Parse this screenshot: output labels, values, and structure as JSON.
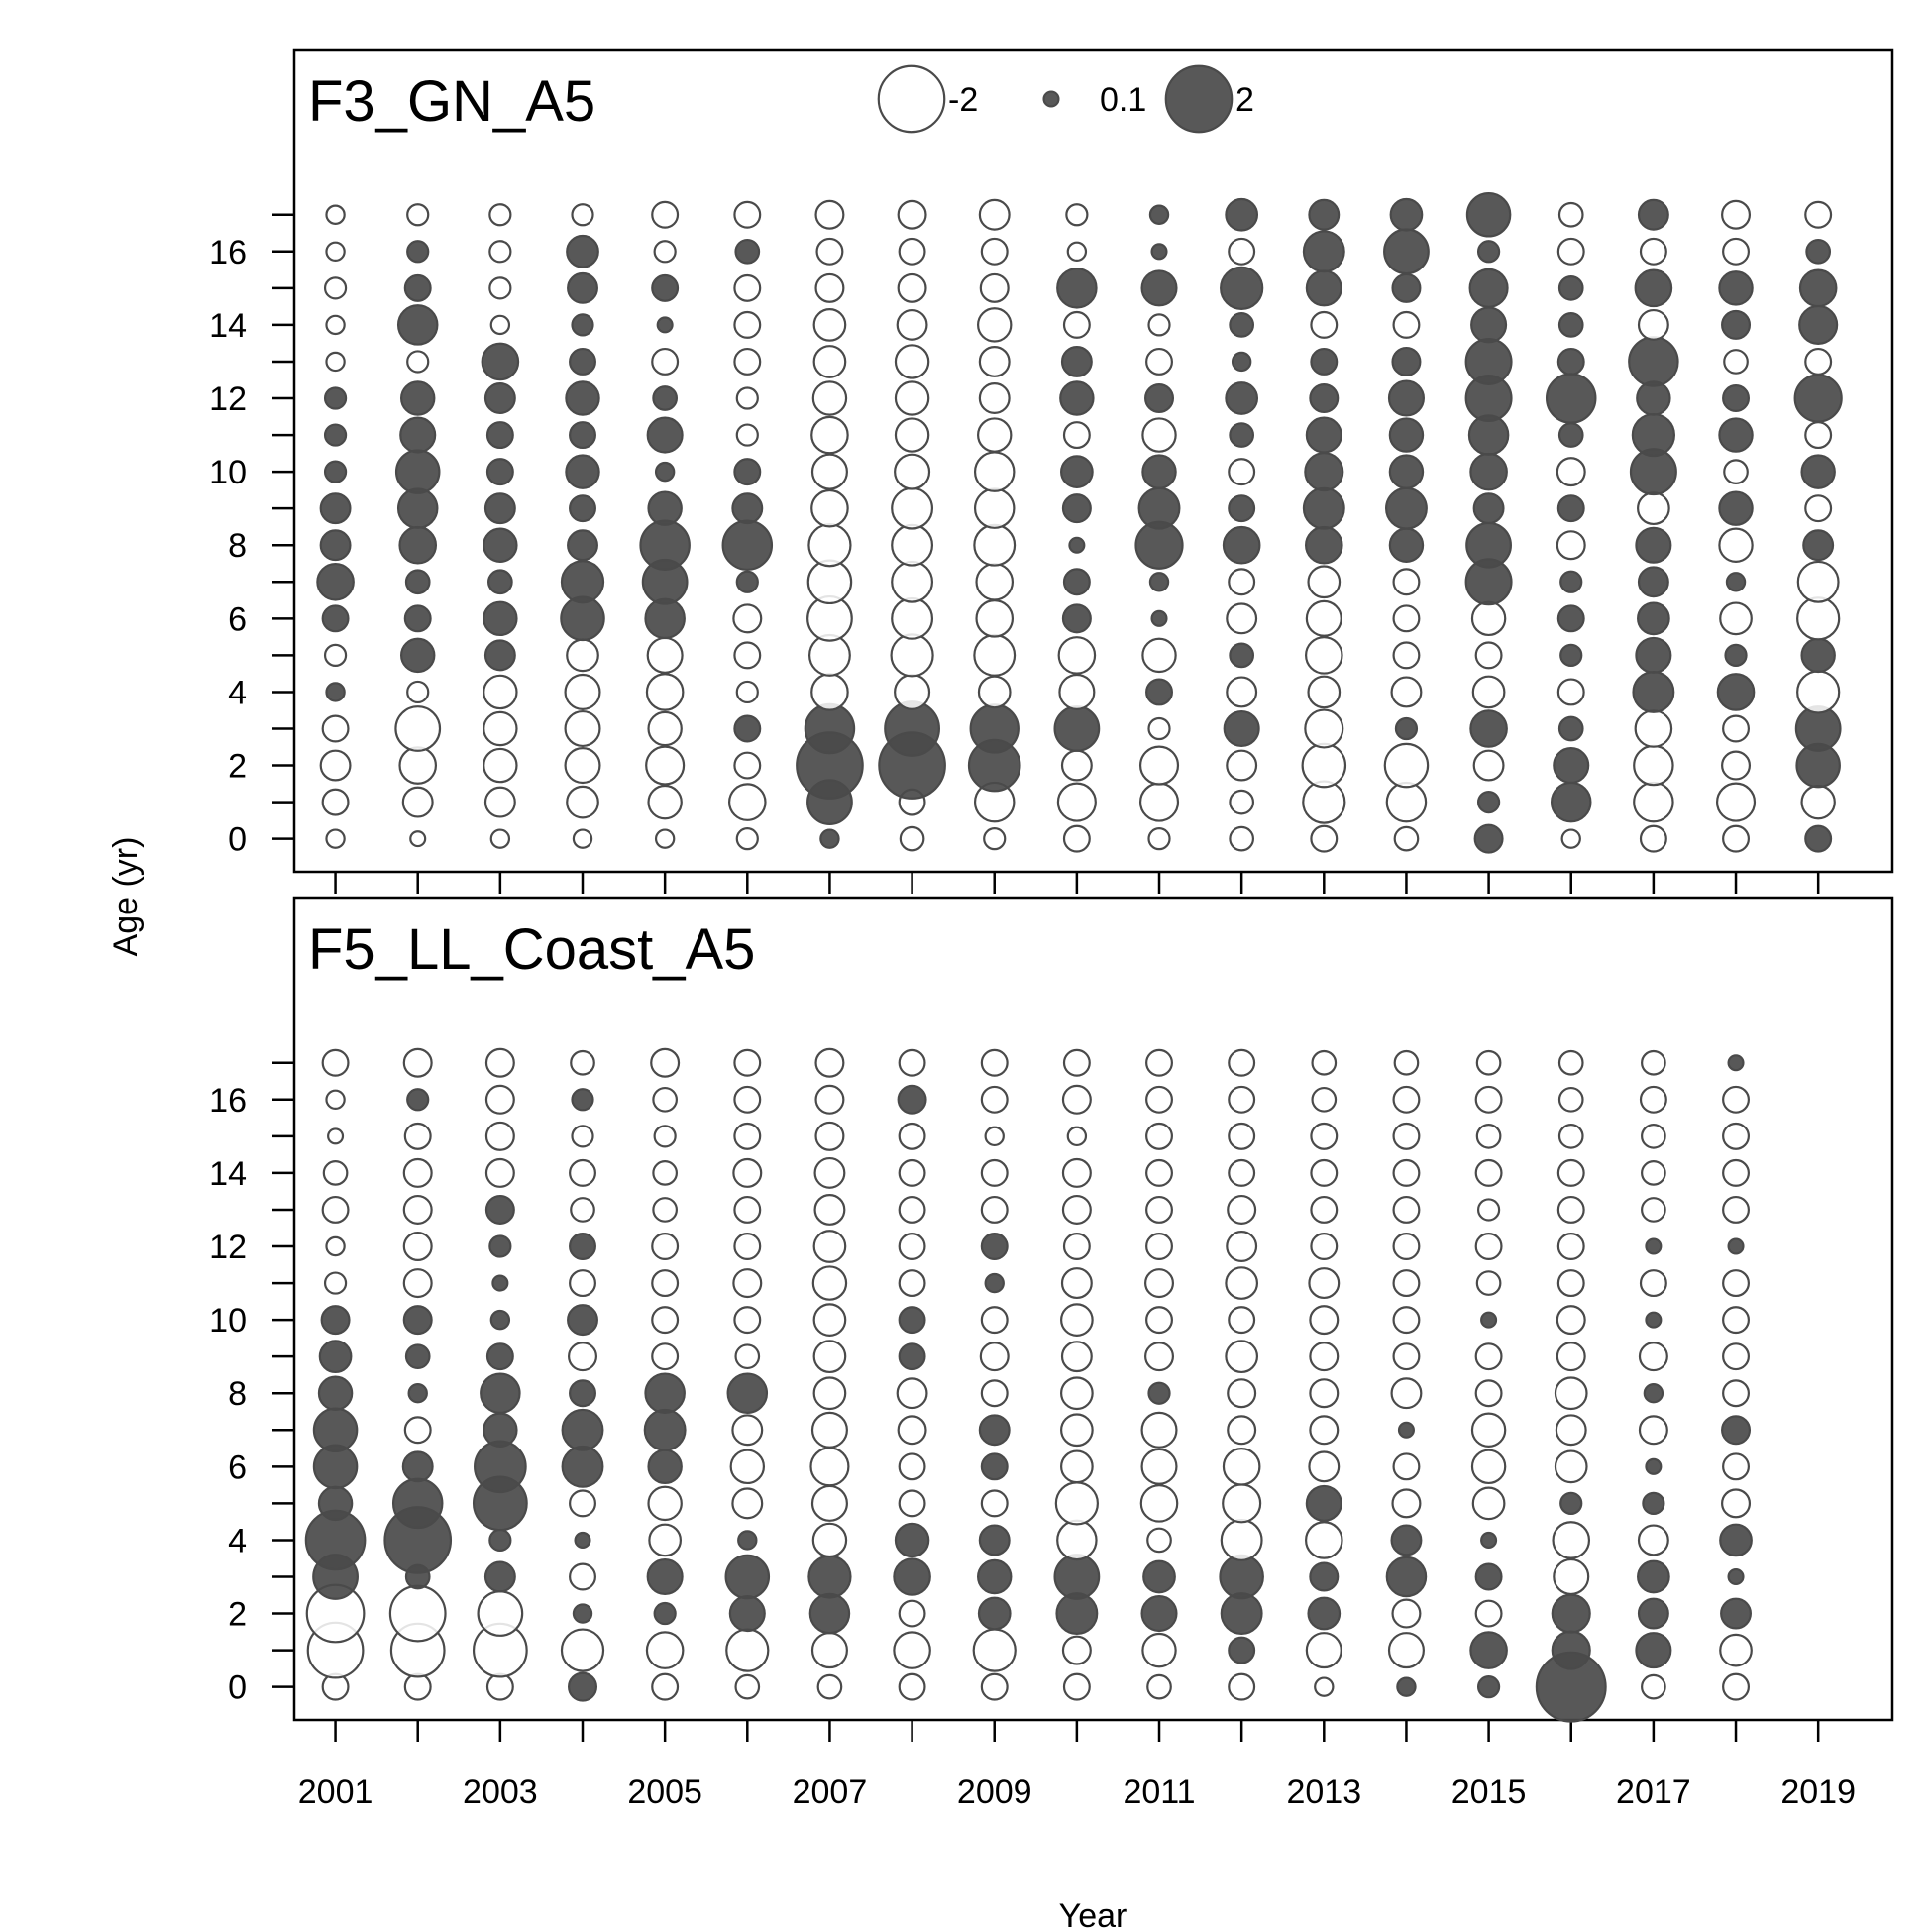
{
  "chart_data": {
    "type": "scatter",
    "subtype": "bubble residual plot",
    "xlabel": "Year",
    "ylabel": "Age (yr)",
    "x_ticks": [
      2001,
      2003,
      2005,
      2007,
      2009,
      2011,
      2013,
      2015,
      2017,
      2019
    ],
    "y_ticks": [
      0,
      2,
      4,
      6,
      8,
      10,
      12,
      14,
      16
    ],
    "xlim": [
      2000.5,
      2019.9
    ],
    "ylim": [
      -0.9,
      21.5
    ],
    "legend": {
      "placement": "top-center",
      "entries": [
        {
          "label": "-2",
          "value": -2
        },
        {
          "label": "0.1",
          "value": 0.1
        },
        {
          "label": "2",
          "value": 2
        }
      ]
    },
    "style": {
      "positive_fill": "#4a4a4a",
      "negative_fill": "#ffffff",
      "stroke": "#4a4a4a"
    },
    "years": [
      2001,
      2002,
      2003,
      2004,
      2005,
      2006,
      2007,
      2008,
      2009,
      2010,
      2011,
      2012,
      2013,
      2014,
      2015,
      2016,
      2017,
      2018,
      2019
    ],
    "ages": [
      0,
      1,
      2,
      3,
      4,
      5,
      6,
      7,
      8,
      9,
      10,
      11,
      12,
      13,
      14,
      15,
      16,
      17
    ],
    "panels": [
      {
        "title": "F3_GN_A5",
        "residuals": [
          [
            -0.15,
            -0.3,
            -0.4,
            -0.3,
            0.15,
            -0.2,
            0.3,
            0.6,
            0.4,
            0.4,
            0.2,
            0.2,
            0.2,
            -0.15,
            -0.15,
            -0.2,
            -0.15,
            -0.15
          ],
          [
            -0.1,
            -0.4,
            -0.6,
            -0.9,
            -0.2,
            0.5,
            0.3,
            0.25,
            0.6,
            0.7,
            0.85,
            0.55,
            0.5,
            -0.2,
            0.7,
            0.3,
            0.2,
            -0.2
          ],
          [
            -0.15,
            -0.4,
            -0.5,
            -0.5,
            -0.5,
            0.4,
            0.5,
            0.25,
            0.5,
            0.4,
            0.3,
            0.3,
            0.4,
            0.6,
            -0.15,
            -0.2,
            -0.2,
            -0.2
          ],
          [
            -0.15,
            -0.45,
            -0.55,
            -0.55,
            -0.55,
            -0.45,
            0.85,
            0.8,
            0.4,
            0.3,
            0.5,
            0.3,
            0.5,
            0.3,
            0.2,
            0.4,
            0.45,
            -0.2
          ],
          [
            -0.15,
            -0.5,
            -0.65,
            -0.5,
            -0.6,
            -0.55,
            0.7,
            0.9,
            1.1,
            0.5,
            0.15,
            0.55,
            0.25,
            -0.3,
            0.1,
            0.3,
            -0.2,
            -0.3
          ],
          [
            -0.2,
            -0.6,
            -0.3,
            0.3,
            -0.2,
            -0.3,
            -0.35,
            0.2,
            1.1,
            0.4,
            0.3,
            -0.2,
            -0.2,
            -0.3,
            -0.3,
            -0.3,
            0.25,
            -0.3
          ],
          [
            0.15,
            0.9,
            2.0,
            1.1,
            -0.6,
            -0.75,
            -0.9,
            -0.85,
            -0.8,
            -0.6,
            -0.55,
            -0.6,
            -0.5,
            -0.45,
            -0.45,
            -0.35,
            -0.3,
            -0.35
          ],
          [
            -0.25,
            -0.3,
            2.0,
            1.35,
            -0.55,
            -0.8,
            -0.75,
            -0.75,
            -0.75,
            -0.75,
            -0.55,
            -0.5,
            -0.5,
            -0.5,
            -0.4,
            -0.35,
            -0.3,
            -0.35
          ],
          [
            -0.2,
            -0.7,
            1.2,
            1.05,
            -0.45,
            -0.75,
            -0.6,
            -0.6,
            -0.75,
            -0.7,
            -0.7,
            -0.5,
            -0.4,
            -0.4,
            -0.5,
            -0.35,
            -0.3,
            -0.4
          ],
          [
            -0.3,
            -0.65,
            -0.4,
            0.9,
            -0.55,
            -0.6,
            0.35,
            0.3,
            0.1,
            0.35,
            0.45,
            -0.3,
            0.5,
            0.4,
            -0.3,
            0.7,
            -0.15,
            -0.2
          ],
          [
            -0.2,
            -0.65,
            -0.65,
            -0.2,
            0.3,
            -0.5,
            0.1,
            0.15,
            1.0,
            0.75,
            0.5,
            -0.5,
            0.35,
            -0.3,
            -0.2,
            0.55,
            0.1,
            0.15
          ],
          [
            -0.25,
            -0.25,
            -0.4,
            0.55,
            -0.4,
            0.25,
            -0.4,
            -0.3,
            0.6,
            0.3,
            -0.3,
            0.25,
            0.45,
            0.15,
            0.25,
            0.8,
            -0.3,
            0.45
          ],
          [
            -0.3,
            -0.8,
            -0.85,
            -0.65,
            -0.45,
            -0.6,
            -0.55,
            -0.45,
            0.6,
            0.75,
            0.65,
            0.55,
            0.35,
            0.3,
            -0.3,
            0.55,
            0.75,
            0.4
          ],
          [
            -0.25,
            -0.7,
            -0.85,
            0.2,
            -0.4,
            -0.3,
            -0.3,
            -0.3,
            0.5,
            0.75,
            0.5,
            0.5,
            0.55,
            0.35,
            -0.3,
            0.35,
            0.9,
            0.45
          ],
          [
            0.35,
            0.2,
            -0.4,
            0.6,
            -0.45,
            -0.3,
            -0.5,
            0.95,
            0.9,
            0.4,
            0.6,
            0.7,
            0.95,
            0.95,
            0.55,
            0.65,
            0.2,
            0.85
          ],
          [
            -0.15,
            0.7,
            0.55,
            0.25,
            -0.3,
            0.2,
            0.3,
            0.2,
            -0.35,
            0.3,
            -0.35,
            0.25,
            1.1,
            0.3,
            0.25,
            0.25,
            -0.3,
            -0.25
          ],
          [
            -0.3,
            -0.7,
            -0.7,
            -0.6,
            0.75,
            0.55,
            0.45,
            0.4,
            0.55,
            -0.45,
            0.95,
            0.8,
            0.5,
            1.1,
            -0.4,
            0.6,
            -0.3,
            0.4
          ],
          [
            -0.3,
            -0.65,
            -0.35,
            -0.3,
            0.6,
            0.2,
            -0.45,
            0.15,
            -0.5,
            0.5,
            -0.25,
            0.5,
            0.3,
            -0.25,
            0.35,
            0.5,
            -0.3,
            -0.35
          ],
          [
            0.3,
            -0.5,
            0.85,
            0.9,
            -0.8,
            0.5,
            -0.8,
            -0.75,
            0.4,
            -0.3,
            0.5,
            -0.3,
            1.0,
            -0.3,
            0.65,
            0.6,
            0.25,
            -0.3
          ]
        ]
      },
      {
        "title": "F5_LL_Coast_A5",
        "residuals": [
          [
            -0.3,
            -1.4,
            -1.5,
            0.9,
            1.6,
            0.5,
            0.85,
            0.85,
            0.5,
            0.45,
            0.35,
            -0.2,
            -0.15,
            -0.3,
            -0.25,
            -0.1,
            -0.15,
            -0.3
          ],
          [
            -0.3,
            -1.3,
            -1.4,
            0.25,
            2.0,
            1.1,
            0.4,
            -0.3,
            0.15,
            0.25,
            0.35,
            -0.35,
            -0.35,
            -0.35,
            -0.35,
            -0.3,
            0.2,
            -0.35
          ],
          [
            -0.3,
            -1.3,
            -0.9,
            0.4,
            0.2,
            1.3,
            1.2,
            0.5,
            0.7,
            0.3,
            0.15,
            0.1,
            0.2,
            0.35,
            -0.35,
            -0.35,
            -0.35,
            -0.35
          ],
          [
            0.35,
            -0.8,
            0.15,
            -0.3,
            0.1,
            -0.3,
            0.75,
            0.75,
            0.3,
            -0.35,
            0.4,
            -0.3,
            0.3,
            -0.25,
            -0.3,
            -0.2,
            0.2,
            -0.25
          ],
          [
            -0.3,
            -0.6,
            0.2,
            0.55,
            -0.45,
            -0.5,
            0.5,
            0.75,
            0.7,
            -0.3,
            -0.3,
            -0.3,
            -0.3,
            -0.25,
            -0.25,
            -0.2,
            -0.25,
            -0.35
          ],
          [
            -0.25,
            -0.8,
            0.55,
            0.85,
            0.15,
            -0.4,
            -0.5,
            -0.4,
            0.7,
            -0.25,
            -0.3,
            -0.35,
            -0.3,
            -0.3,
            -0.35,
            -0.3,
            -0.3,
            -0.3
          ],
          [
            -0.25,
            -0.55,
            0.7,
            0.8,
            -0.5,
            -0.55,
            -0.65,
            -0.55,
            -0.45,
            -0.45,
            -0.45,
            -0.5,
            -0.45,
            -0.4,
            -0.4,
            -0.35,
            -0.35,
            -0.35
          ],
          [
            -0.3,
            -0.6,
            -0.3,
            0.6,
            0.5,
            -0.3,
            -0.3,
            -0.35,
            -0.4,
            0.3,
            0.3,
            -0.3,
            -0.3,
            -0.3,
            -0.3,
            -0.3,
            0.35,
            -0.3
          ],
          [
            -0.3,
            -0.8,
            0.45,
            0.5,
            0.4,
            -0.3,
            0.3,
            0.4,
            -0.3,
            -0.35,
            -0.3,
            0.15,
            0.3,
            -0.3,
            -0.3,
            -0.15,
            -0.3,
            -0.3
          ],
          [
            -0.3,
            -0.35,
            0.75,
            0.9,
            -0.7,
            -0.8,
            -0.45,
            -0.45,
            -0.45,
            -0.4,
            -0.45,
            -0.4,
            -0.3,
            -0.35,
            -0.35,
            -0.15,
            -0.35,
            -0.3
          ],
          [
            -0.25,
            -0.5,
            0.55,
            0.45,
            -0.25,
            -0.6,
            -0.55,
            -0.55,
            0.2,
            -0.35,
            -0.3,
            -0.35,
            -0.3,
            -0.3,
            -0.3,
            -0.3,
            -0.3,
            -0.3
          ],
          [
            -0.3,
            0.3,
            0.75,
            0.85,
            -0.75,
            -0.65,
            -0.6,
            -0.35,
            -0.35,
            -0.45,
            -0.3,
            -0.45,
            -0.4,
            -0.35,
            -0.3,
            -0.3,
            -0.3,
            -0.3
          ],
          [
            -0.15,
            -0.55,
            0.45,
            0.35,
            -0.6,
            0.55,
            -0.4,
            -0.35,
            -0.35,
            -0.35,
            -0.35,
            -0.4,
            -0.3,
            -0.3,
            -0.3,
            -0.3,
            -0.25,
            -0.25
          ],
          [
            0.15,
            -0.55,
            -0.35,
            0.7,
            0.4,
            -0.35,
            -0.3,
            0.1,
            -0.4,
            -0.3,
            -0.3,
            -0.3,
            -0.3,
            -0.3,
            -0.3,
            -0.3,
            -0.3,
            -0.25
          ],
          [
            0.2,
            0.6,
            -0.3,
            0.3,
            0.1,
            -0.45,
            -0.5,
            -0.5,
            -0.3,
            -0.3,
            0.1,
            -0.25,
            -0.3,
            -0.2,
            -0.3,
            -0.25,
            -0.3,
            -0.25
          ],
          [
            2.2,
            0.65,
            0.65,
            -0.55,
            -0.6,
            0.2,
            -0.45,
            -0.4,
            -0.45,
            -0.35,
            -0.35,
            -0.3,
            -0.3,
            -0.3,
            -0.3,
            -0.25,
            -0.25,
            -0.25
          ],
          [
            -0.25,
            0.55,
            0.4,
            0.45,
            -0.4,
            0.2,
            0.1,
            -0.35,
            0.15,
            -0.35,
            0.1,
            -0.3,
            0.1,
            -0.25,
            -0.25,
            -0.25,
            -0.3,
            -0.25
          ],
          [
            -0.3,
            -0.45,
            0.4,
            0.1,
            0.45,
            -0.35,
            -0.3,
            0.35,
            -0.3,
            -0.3,
            -0.3,
            -0.3,
            0.1,
            -0.3,
            -0.3,
            -0.3,
            -0.3,
            0.1
          ],
          null
        ]
      }
    ]
  }
}
